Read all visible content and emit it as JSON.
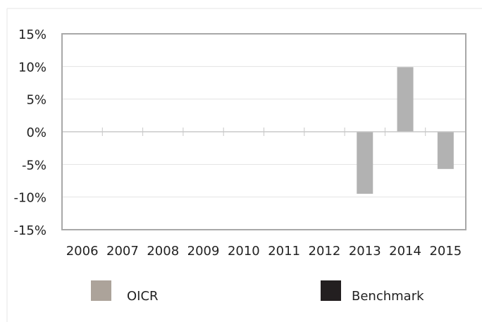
{
  "chart_data": {
    "type": "bar",
    "categories": [
      "2006",
      "2007",
      "2008",
      "2009",
      "2010",
      "2011",
      "2012",
      "2013",
      "2014",
      "2015"
    ],
    "series": [
      {
        "name": "OICR",
        "values": [
          0,
          0,
          0,
          0,
          0,
          0,
          0,
          -9.5,
          9.9,
          -5.7
        ],
        "color": "#b2b2b2"
      },
      {
        "name": "Benchmark",
        "values": [
          0,
          0,
          0,
          0,
          0,
          0,
          0,
          0,
          0,
          0
        ],
        "color": "#231f20"
      }
    ],
    "y_ticks": [
      15,
      10,
      5,
      0,
      -5,
      -10,
      -15
    ],
    "y_tick_labels": [
      "15%",
      "10%",
      "5%",
      "0%",
      "-5%",
      "-10%",
      "-15%"
    ],
    "ylim": [
      -15,
      15
    ],
    "grid": true,
    "legend": {
      "position": "bottom",
      "items": [
        {
          "label": "OICR",
          "color": "#aca39a"
        },
        {
          "label": "Benchmark",
          "color": "#231f20"
        }
      ]
    }
  }
}
